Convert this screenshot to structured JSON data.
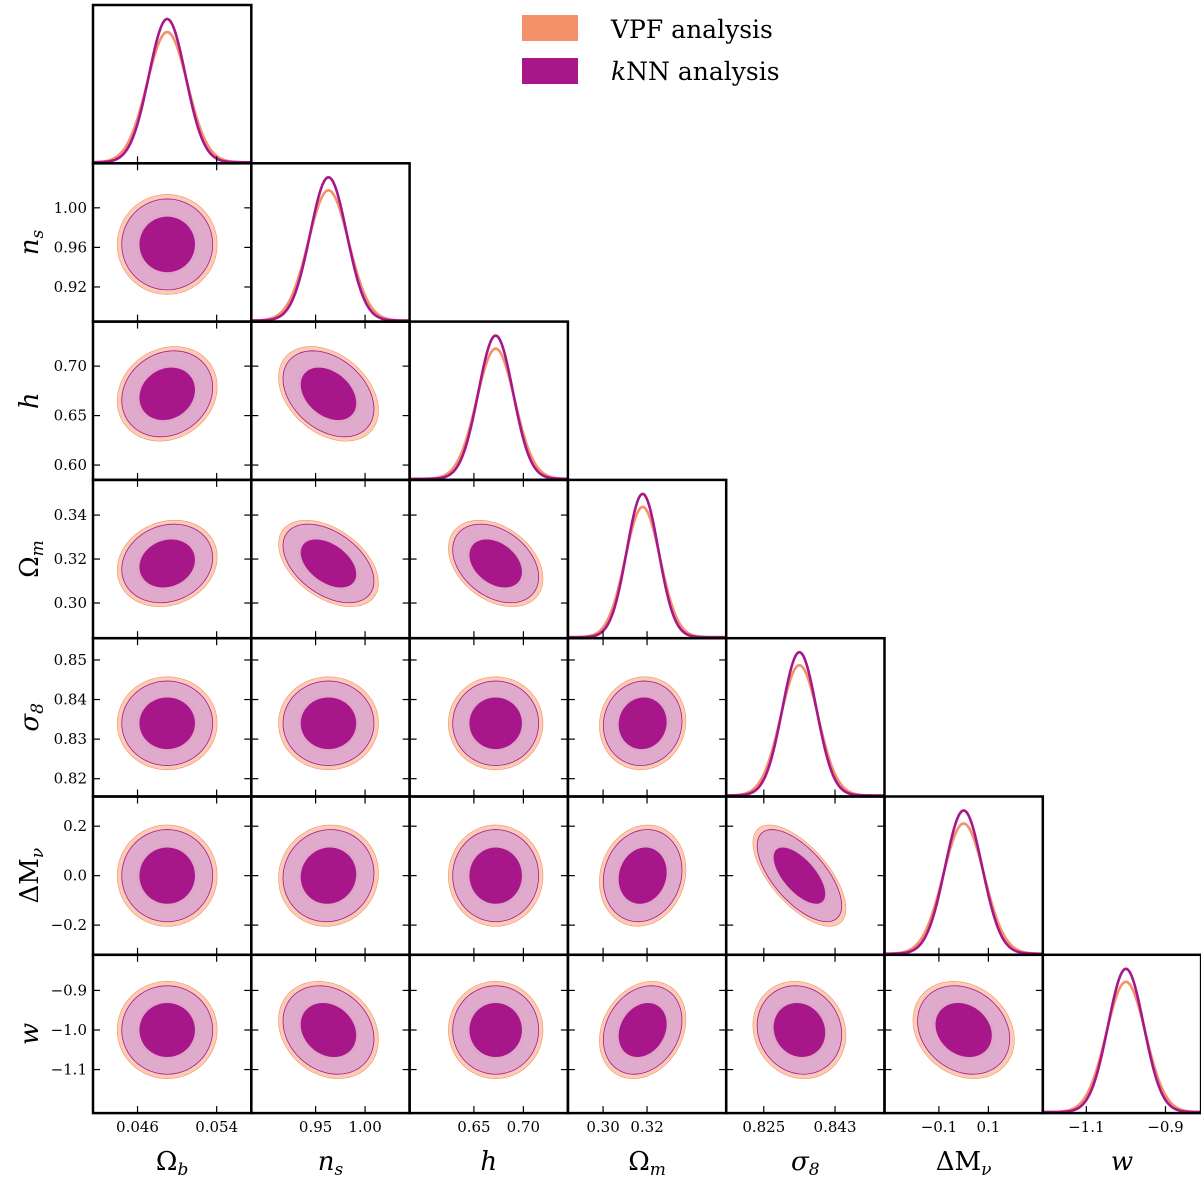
{
  "chart_data": {
    "type": "corner",
    "title": "",
    "legend": {
      "placement": "top-right",
      "entries": [
        {
          "name": "VPF analysis",
          "color": "#f4916a"
        },
        {
          "name": "kNN analysis",
          "name_prefix_italic": "k",
          "name_rest": "NN analysis",
          "color": "#a8178a"
        }
      ]
    },
    "colors": {
      "vpf": "#f4916a",
      "vpf_outer_fill": "#f9c6ae",
      "vpf_inner_fill": "#ef9d8d",
      "knn": "#a8178a",
      "knn_outer_fill": "#d9a3cf",
      "knn_inner_fill": "#a8178a"
    },
    "parameters": [
      {
        "key": "Ob",
        "label_base": "Ω",
        "label_sub": "b",
        "range": [
          0.0415,
          0.0575
        ],
        "ticks": [
          0.046,
          0.054
        ],
        "tick_labels": [
          "0.046",
          "0.054"
        ],
        "mean": 0.049,
        "sigma": 0.00185
      },
      {
        "key": "ns",
        "label_base": "n",
        "label_sub": "s",
        "range": [
          0.885,
          1.045
        ],
        "ticks": [
          0.92,
          0.96,
          1.0
        ],
        "tick_labels": [
          "0.92",
          "0.96",
          "1.00"
        ],
        "tick_labels_x": [
          "0.95",
          "1.00"
        ],
        "ticks_x": [
          0.95,
          1.0
        ],
        "mean": 0.963,
        "sigma": 0.0185
      },
      {
        "key": "h",
        "label_base": "h",
        "label_sub": "",
        "range": [
          0.585,
          0.745
        ],
        "ticks": [
          0.6,
          0.65,
          0.7
        ],
        "tick_labels": [
          "0.60",
          "0.65",
          "0.70"
        ],
        "ticks_x": [
          0.65,
          0.7
        ],
        "tick_labels_x": [
          "0.65",
          "0.70"
        ],
        "mean": 0.672,
        "sigma": 0.0175
      },
      {
        "key": "Om",
        "label_base": "Ω",
        "label_sub": "m",
        "range": [
          0.284,
          0.356
        ],
        "ticks": [
          0.3,
          0.32,
          0.34
        ],
        "tick_labels": [
          "0.30",
          "0.32",
          "0.34"
        ],
        "ticks_x": [
          0.3,
          0.32
        ],
        "tick_labels_x": [
          "0.30",
          "0.32"
        ],
        "mean": 0.318,
        "sigma": 0.0072
      },
      {
        "key": "s8",
        "label_base": "σ",
        "label_sub": "8",
        "range": [
          0.8155,
          0.8555
        ],
        "ticks": [
          0.82,
          0.83,
          0.84,
          0.85
        ],
        "tick_labels": [
          "0.82",
          "0.83",
          "0.84",
          "0.85"
        ],
        "ticks_x": [
          0.825,
          0.843
        ],
        "tick_labels_x": [
          "0.825",
          "0.843"
        ],
        "mean": 0.834,
        "sigma": 0.0043
      },
      {
        "key": "dMnu",
        "label_base": "ΔM",
        "label_sub": "ν",
        "range": [
          -0.32,
          0.32
        ],
        "ticks": [
          -0.2,
          0.0,
          0.2
        ],
        "tick_labels": [
          "−0.2",
          "0.0",
          "0.2"
        ],
        "ticks_x": [
          -0.1,
          0.1
        ],
        "tick_labels_x": [
          "−0.1",
          "0.1"
        ],
        "mean": 0.0,
        "sigma": 0.075
      },
      {
        "key": "w",
        "label_base": "w",
        "label_sub": "",
        "range": [
          -1.21,
          -0.81
        ],
        "ticks": [
          -1.1,
          -1.0,
          -0.9
        ],
        "tick_labels": [
          "−1.1",
          "−1.0",
          "−0.9"
        ],
        "ticks_x": [
          -1.1,
          -0.9
        ],
        "tick_labels_x": [
          "−1.1",
          "−0.9"
        ],
        "mean": -1.0,
        "sigma": 0.045
      }
    ],
    "vpf_width_factor": 1.1,
    "correlations": {
      "ns|Ob": 0.0,
      "h|Ob": 0.15,
      "Om|Ob": 0.15,
      "s8|Ob": 0.0,
      "dMnu|Ob": 0.0,
      "w|Ob": 0.0,
      "h|ns": -0.35,
      "Om|ns": -0.45,
      "s8|ns": 0.0,
      "dMnu|ns": 0.05,
      "w|ns": -0.2,
      "Om|h": -0.35,
      "s8|h": 0.0,
      "dMnu|h": 0.0,
      "w|h": 0.0,
      "s8|Om": 0.05,
      "dMnu|Om": 0.12,
      "w|Om": 0.22,
      "dMnu|s8": -0.65,
      "w|s8": -0.1,
      "w|dMnu": -0.2
    }
  }
}
